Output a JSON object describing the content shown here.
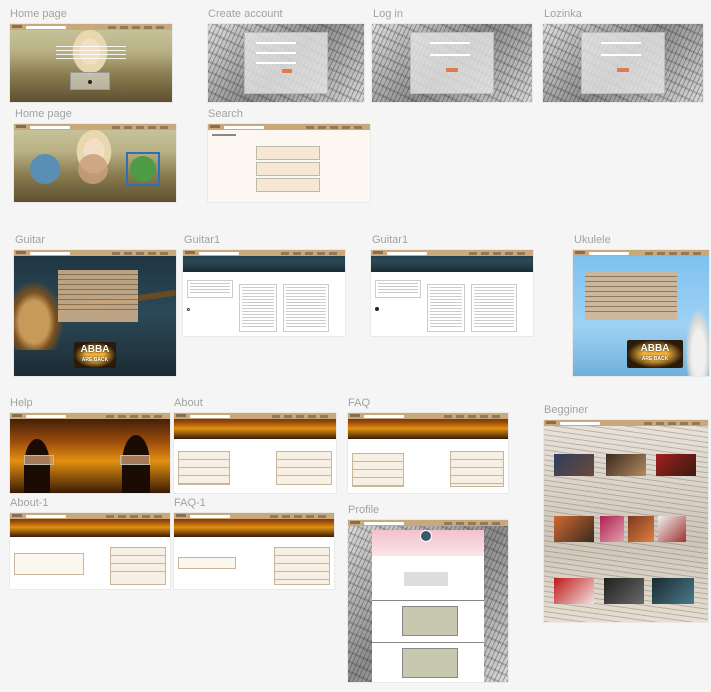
{
  "frames": {
    "home1": {
      "label": "Home page"
    },
    "create": {
      "label": "Create account"
    },
    "login": {
      "label": "Log in"
    },
    "lozinka": {
      "label": "Lozinka"
    },
    "home2": {
      "label": "Home page"
    },
    "search": {
      "label": "Search"
    },
    "guitar": {
      "label": "Guitar"
    },
    "guitar1a": {
      "label": "Guitar1"
    },
    "guitar1b": {
      "label": "Guitar1"
    },
    "ukulele": {
      "label": "Ukulele"
    },
    "help": {
      "label": "Help"
    },
    "about": {
      "label": "About"
    },
    "faq": {
      "label": "FAQ"
    },
    "begginer": {
      "label": "Begginer"
    },
    "about1": {
      "label": "About-1"
    },
    "faq1": {
      "label": "FAQ-1"
    },
    "profile": {
      "label": "Profile"
    }
  },
  "abba": {
    "line1": "ABBA",
    "line2": "ARE BACK"
  },
  "colors": {
    "nav": "#c9a97c",
    "accent": "#e07b4a",
    "label": "#a2a2a2",
    "canvas": "#f5f5f5"
  },
  "icons": {
    "music_note": "music-note-icon"
  }
}
